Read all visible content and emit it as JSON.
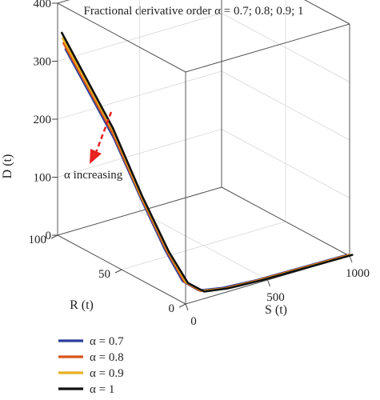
{
  "chart_data": {
    "type": "line3d",
    "title": "Fractional derivative order α = 0.7; 0.8; 0.9; 1",
    "axes": {
      "x": {
        "label": "S (t)",
        "range": [
          0,
          1000
        ],
        "ticks": [
          "0",
          "500",
          "1000"
        ]
      },
      "y": {
        "label": "R (t)",
        "range": [
          0,
          100
        ],
        "ticks": [
          "0",
          "50",
          "100"
        ]
      },
      "z": {
        "label": "D (t)",
        "range": [
          0,
          400
        ],
        "ticks": [
          "0",
          "100",
          "200",
          "300",
          "400"
        ]
      }
    },
    "grid": true,
    "legend_position": "bottom-left",
    "annotation": "α increasing",
    "series": [
      {
        "name": "α = 0.7",
        "color": "#2b3f9e",
        "points": [
          [
            1000,
            0,
            2
          ],
          [
            700,
            0,
            3
          ],
          [
            450,
            0,
            4
          ],
          [
            250,
            1,
            6
          ],
          [
            120,
            3,
            10
          ],
          [
            60,
            8,
            25
          ],
          [
            30,
            18,
            70
          ],
          [
            15,
            35,
            140
          ],
          [
            8,
            55,
            220
          ],
          [
            4,
            75,
            280
          ],
          [
            2,
            92,
            330
          ]
        ]
      },
      {
        "name": "α = 0.8",
        "color": "#d9541a",
        "points": [
          [
            1000,
            0,
            2
          ],
          [
            700,
            0,
            3
          ],
          [
            450,
            0,
            4
          ],
          [
            250,
            1,
            5
          ],
          [
            120,
            3,
            9
          ],
          [
            60,
            8,
            24
          ],
          [
            30,
            18,
            68
          ],
          [
            15,
            36,
            140
          ],
          [
            8,
            57,
            225
          ],
          [
            4,
            77,
            285
          ],
          [
            2,
            95,
            337
          ]
        ]
      },
      {
        "name": "α = 0.9",
        "color": "#e8b020",
        "points": [
          [
            1000,
            0,
            2
          ],
          [
            700,
            0,
            3
          ],
          [
            450,
            0,
            4
          ],
          [
            250,
            1,
            5
          ],
          [
            120,
            3,
            9
          ],
          [
            60,
            8,
            23
          ],
          [
            30,
            18,
            66
          ],
          [
            15,
            37,
            140
          ],
          [
            8,
            58,
            228
          ],
          [
            4,
            79,
            290
          ],
          [
            2,
            97,
            343
          ]
        ]
      },
      {
        "name": "α = 1",
        "color": "#111111",
        "points": [
          [
            1000,
            0,
            2
          ],
          [
            700,
            0,
            3
          ],
          [
            450,
            0,
            4
          ],
          [
            250,
            1,
            5
          ],
          [
            120,
            3,
            8
          ],
          [
            60,
            8,
            22
          ],
          [
            30,
            19,
            65
          ],
          [
            15,
            38,
            140
          ],
          [
            8,
            60,
            232
          ],
          [
            4,
            81,
            296
          ],
          [
            2,
            99,
            350
          ]
        ]
      }
    ]
  }
}
